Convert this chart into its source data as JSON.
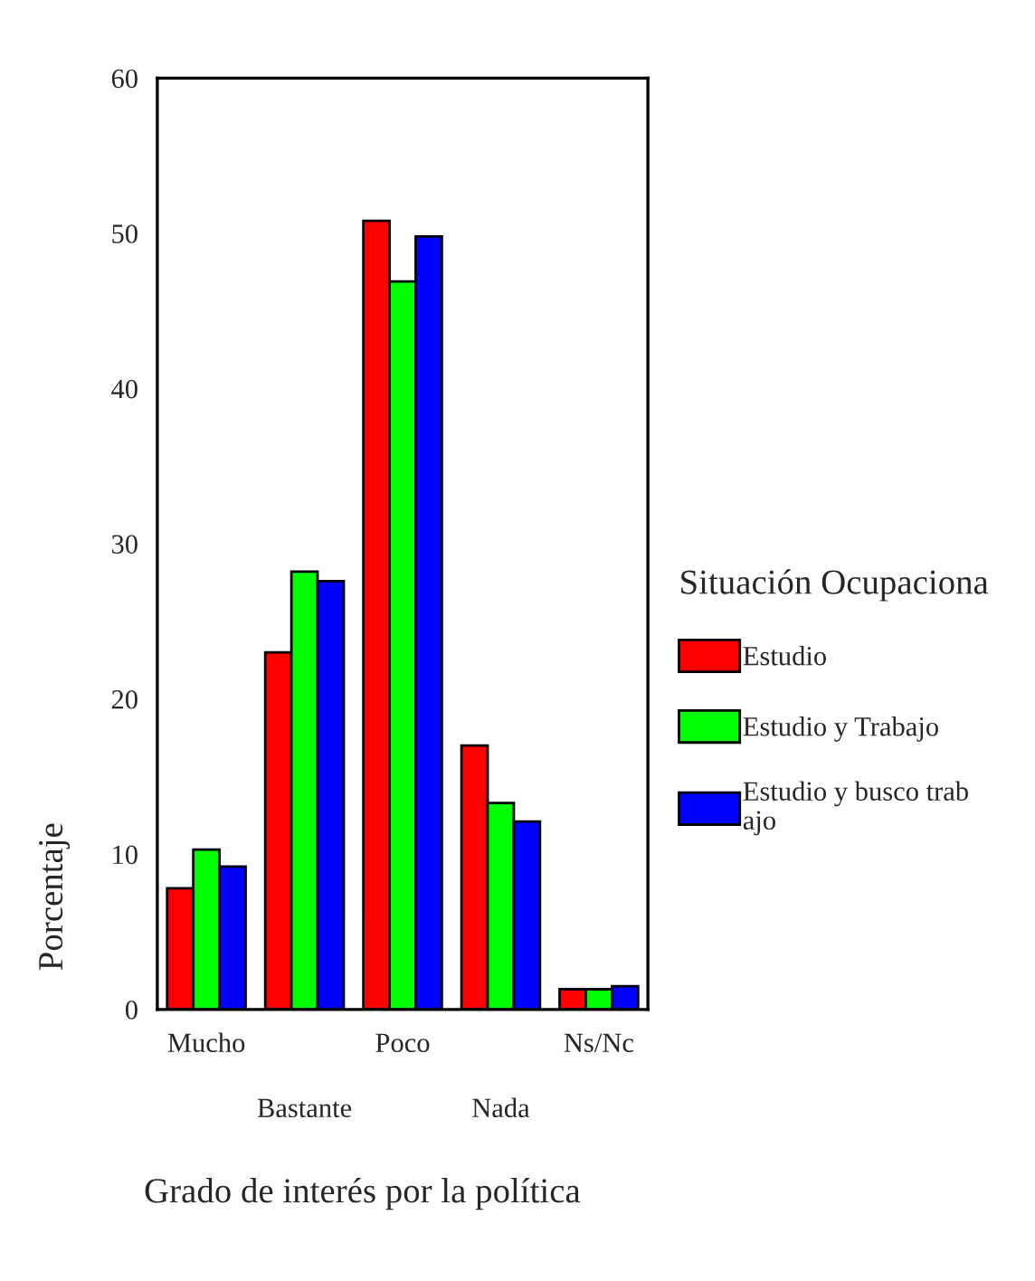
{
  "chart_data": {
    "type": "bar",
    "xlabel": "Grado de interés por la política",
    "ylabel": "Porcentaje",
    "legend_title": "Situación Ocupaciona",
    "categories": [
      "Mucho",
      "Bastante",
      "Poco",
      "Nada",
      "Ns/Nc"
    ],
    "series": [
      {
        "name": "Estudio",
        "color": "#ff0000",
        "values": [
          7.8,
          23.0,
          50.8,
          17.0,
          1.3
        ]
      },
      {
        "name": "Estudio y Trabajo",
        "color": "#00ff00",
        "values": [
          10.3,
          28.2,
          46.9,
          13.3,
          1.3
        ]
      },
      {
        "name": "Estudio y busco trab\najo",
        "color": "#0000ff",
        "values": [
          9.2,
          27.6,
          49.8,
          12.1,
          1.5
        ]
      }
    ],
    "ylim": [
      0,
      60
    ],
    "yticks": [
      0,
      10,
      20,
      30,
      40,
      50,
      60
    ],
    "grid": false,
    "legend": "right"
  }
}
